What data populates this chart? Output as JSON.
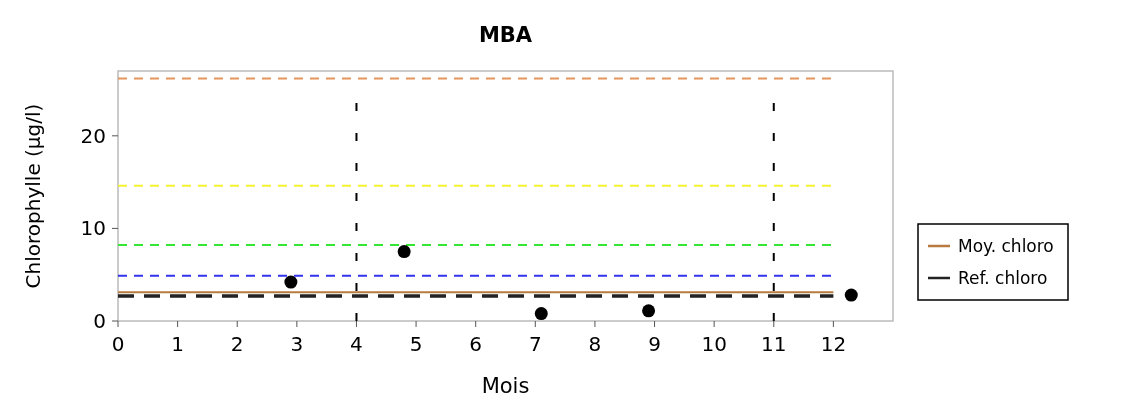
{
  "chart_data": {
    "type": "scatter",
    "title": "MBA",
    "xlabel": "Mois",
    "ylabel": "Chlorophylle (µg/l)",
    "xlim": [
      0,
      13
    ],
    "ylim": [
      0,
      27
    ],
    "xticks": [
      0,
      1,
      2,
      3,
      4,
      5,
      6,
      7,
      8,
      9,
      10,
      11,
      12
    ],
    "yticks": [
      0,
      10,
      20
    ],
    "grid": false,
    "legend": "right",
    "marker": "circle",
    "series": [
      {
        "type": "line",
        "color": "#e8955a",
        "x": [
          0,
          12
        ],
        "values": [
          26.2,
          26.2
        ],
        "line_style": "dashed",
        "marker": "none"
      },
      {
        "type": "line",
        "color": "#f2f230",
        "x": [
          0,
          12
        ],
        "values": [
          14.6,
          14.6
        ],
        "line_style": "dashed",
        "marker": "none"
      },
      {
        "type": "line",
        "color": "#33e633",
        "x": [
          0,
          12
        ],
        "values": [
          8.2,
          8.2
        ],
        "line_style": "dashed",
        "marker": "none"
      },
      {
        "type": "line",
        "color": "#3333ee",
        "x": [
          0,
          12
        ],
        "values": [
          4.9,
          4.9
        ],
        "line_style": "dashed",
        "marker": "none"
      },
      {
        "type": "line",
        "name": "Moy. chloro",
        "color": "#b87a3e",
        "x": [
          0,
          12
        ],
        "values": [
          3.1,
          3.1
        ],
        "line_style": "solid",
        "marker": "none"
      },
      {
        "type": "line",
        "name": "Ref. chloro",
        "color": "#222222",
        "x": [
          0,
          12
        ],
        "values": [
          2.7,
          2.7
        ],
        "line_style": "dashed",
        "marker": "none"
      },
      {
        "color": "#000000",
        "x": [
          2.9,
          4.8,
          7.1,
          8.9,
          12.3
        ],
        "values": [
          4.2,
          7.5,
          0.8,
          1.1,
          2.8
        ]
      }
    ],
    "ref_lines": [
      {
        "axis": "x",
        "value": 4,
        "color": "#000000",
        "line_style": "dashed"
      },
      {
        "axis": "x",
        "value": 11,
        "color": "#000000",
        "line_style": "dashed"
      }
    ]
  }
}
